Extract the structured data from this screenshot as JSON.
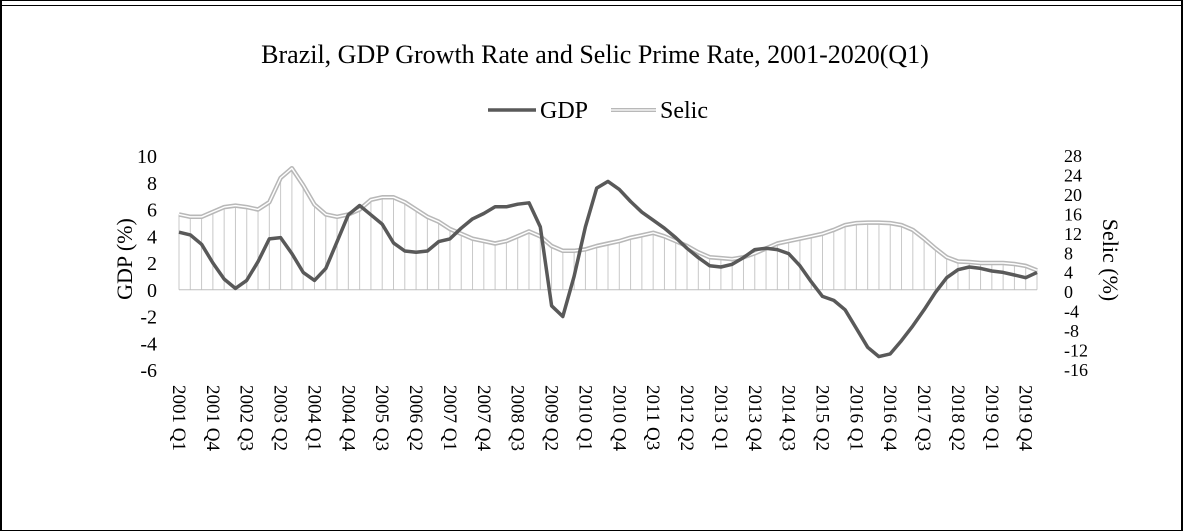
{
  "chart_data": {
    "type": "line",
    "title": "Brazil, GDP Growth Rate and Selic Prime Rate, 2001-2020(Q1)",
    "ylabel": "GDP (%)",
    "y2label": "Selic (%)",
    "ylim": [
      -6,
      10
    ],
    "y2lim": [
      -16,
      28
    ],
    "yticks": [
      "-6",
      "-4",
      "-2",
      "0",
      "2",
      "4",
      "6",
      "8",
      "10"
    ],
    "y2ticks": [
      "-16",
      "-12",
      "-8",
      "-4",
      "0",
      "4",
      "8",
      "12",
      "16",
      "20",
      "24",
      "28"
    ],
    "legend_position": "top-center",
    "x_tick_labels": [
      "2001 Q1",
      "2001 Q4",
      "2002 Q3",
      "2003 Q2",
      "2004 Q1",
      "2004 Q4",
      "2005 Q3",
      "2006 Q2",
      "2007 Q1",
      "2007 Q4",
      "2008 Q3",
      "2009 Q2",
      "2010 Q1",
      "2010 Q4",
      "2011 Q3",
      "2012 Q2",
      "2013 Q1",
      "2013 Q4",
      "2014 Q3",
      "2015 Q2",
      "2016 Q1",
      "2016 Q4",
      "2017 Q3",
      "2018 Q2",
      "2019 Q1",
      "2019 Q4"
    ],
    "x": [
      "2001 Q1",
      "2001 Q2",
      "2001 Q3",
      "2001 Q4",
      "2002 Q1",
      "2002 Q2",
      "2002 Q3",
      "2002 Q4",
      "2003 Q1",
      "2003 Q2",
      "2003 Q3",
      "2003 Q4",
      "2004 Q1",
      "2004 Q2",
      "2004 Q3",
      "2004 Q4",
      "2005 Q1",
      "2005 Q2",
      "2005 Q3",
      "2005 Q4",
      "2006 Q1",
      "2006 Q2",
      "2006 Q3",
      "2006 Q4",
      "2007 Q1",
      "2007 Q2",
      "2007 Q3",
      "2007 Q4",
      "2008 Q1",
      "2008 Q2",
      "2008 Q3",
      "2008 Q4",
      "2009 Q1",
      "2009 Q2",
      "2009 Q3",
      "2009 Q4",
      "2010 Q1",
      "2010 Q2",
      "2010 Q3",
      "2010 Q4",
      "2011 Q1",
      "2011 Q2",
      "2011 Q3",
      "2011 Q4",
      "2012 Q1",
      "2012 Q2",
      "2012 Q3",
      "2012 Q4",
      "2013 Q1",
      "2013 Q2",
      "2013 Q3",
      "2013 Q4",
      "2014 Q1",
      "2014 Q2",
      "2014 Q3",
      "2014 Q4",
      "2015 Q1",
      "2015 Q2",
      "2015 Q3",
      "2015 Q4",
      "2016 Q1",
      "2016 Q2",
      "2016 Q3",
      "2016 Q4",
      "2017 Q1",
      "2017 Q2",
      "2017 Q3",
      "2017 Q4",
      "2018 Q1",
      "2018 Q2",
      "2018 Q3",
      "2018 Q4",
      "2019 Q1",
      "2019 Q2",
      "2019 Q3",
      "2019 Q4",
      "2020 Q1"
    ],
    "series": [
      {
        "name": "GDP",
        "axis": "left",
        "color": "#595959",
        "values": [
          4.3,
          4.1,
          3.4,
          2.0,
          0.8,
          0.1,
          0.7,
          2.1,
          3.8,
          3.9,
          2.7,
          1.3,
          0.7,
          1.6,
          3.6,
          5.6,
          6.3,
          5.6,
          4.9,
          3.5,
          2.9,
          2.8,
          2.9,
          3.6,
          3.8,
          4.6,
          5.3,
          5.7,
          6.2,
          6.2,
          6.4,
          6.5,
          4.7,
          -1.2,
          -2.0,
          1.0,
          4.7,
          7.6,
          8.1,
          7.5,
          6.6,
          5.8,
          5.2,
          4.6,
          3.9,
          3.1,
          2.4,
          1.8,
          1.7,
          1.9,
          2.4,
          3.0,
          3.1,
          3.0,
          2.7,
          1.8,
          0.6,
          -0.5,
          -0.8,
          -1.5,
          -2.9,
          -4.3,
          -5.0,
          -4.8,
          -3.8,
          -2.7,
          -1.5,
          -0.2,
          0.9,
          1.5,
          1.7,
          1.6,
          1.4,
          1.3,
          1.1,
          0.9,
          1.3
        ]
      },
      {
        "name": "Selic",
        "axis": "right",
        "color": "#b8b8b8",
        "values": [
          16.0,
          15.5,
          15.5,
          16.5,
          17.5,
          17.8,
          17.5,
          17.0,
          18.5,
          23.5,
          25.5,
          22.0,
          18.0,
          16.0,
          15.5,
          16.0,
          17.0,
          19.0,
          19.5,
          19.5,
          18.5,
          17.0,
          15.5,
          14.5,
          13.0,
          12.0,
          11.0,
          10.5,
          10.0,
          10.5,
          11.5,
          12.5,
          11.5,
          9.5,
          8.5,
          8.5,
          8.8,
          9.5,
          10.0,
          10.5,
          11.2,
          11.7,
          12.2,
          11.5,
          10.5,
          9.5,
          8.2,
          7.2,
          7.0,
          6.8,
          7.2,
          8.0,
          9.0,
          10.0,
          10.5,
          11.0,
          11.5,
          12.0,
          12.8,
          13.8,
          14.2,
          14.3,
          14.3,
          14.2,
          13.8,
          12.8,
          11.0,
          9.0,
          7.2,
          6.3,
          6.2,
          6.0,
          6.0,
          6.0,
          5.8,
          5.4,
          4.5
        ]
      }
    ],
    "grid": false
  }
}
